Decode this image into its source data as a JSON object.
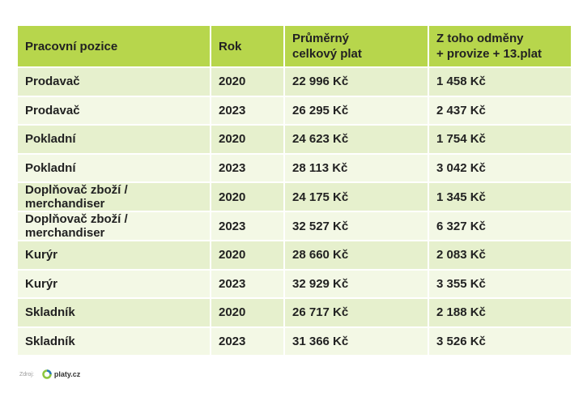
{
  "table": {
    "headers": [
      [
        "Pracovní pozice"
      ],
      [
        "Rok"
      ],
      [
        "Průměrný",
        "celkový plat"
      ],
      [
        "Z toho odměny",
        "+ provize + 13.plat"
      ]
    ],
    "rows": [
      [
        "Prodavač",
        "2020",
        "22 996 Kč",
        "1 458 Kč"
      ],
      [
        "Prodavač",
        "2023",
        "26 295 Kč",
        "2 437 Kč"
      ],
      [
        "Pokladní",
        "2020",
        "24 623 Kč",
        "1 754 Kč"
      ],
      [
        "Pokladní",
        "2023",
        "28 113 Kč",
        "3 042 Kč"
      ],
      [
        "Doplňovač zboží / merchandiser",
        "2020",
        "24 175 Kč",
        "1 345 Kč"
      ],
      [
        "Doplňovač zboží / merchandiser",
        "2023",
        "32 527 Kč",
        "6 327 Kč"
      ],
      [
        "Kurýr",
        "2020",
        "28 660 Kč",
        "2 083 Kč"
      ],
      [
        "Kurýr",
        "2023",
        "32 929 Kč",
        "3 355 Kč"
      ],
      [
        "Skladník",
        "2020",
        "26 717 Kč",
        "2 188 Kč"
      ],
      [
        "Skladník",
        "2023",
        "31 366 Kč",
        "3 526 Kč"
      ]
    ]
  },
  "footer": {
    "source_label": "Zdroj:",
    "brand": "platy.cz"
  }
}
